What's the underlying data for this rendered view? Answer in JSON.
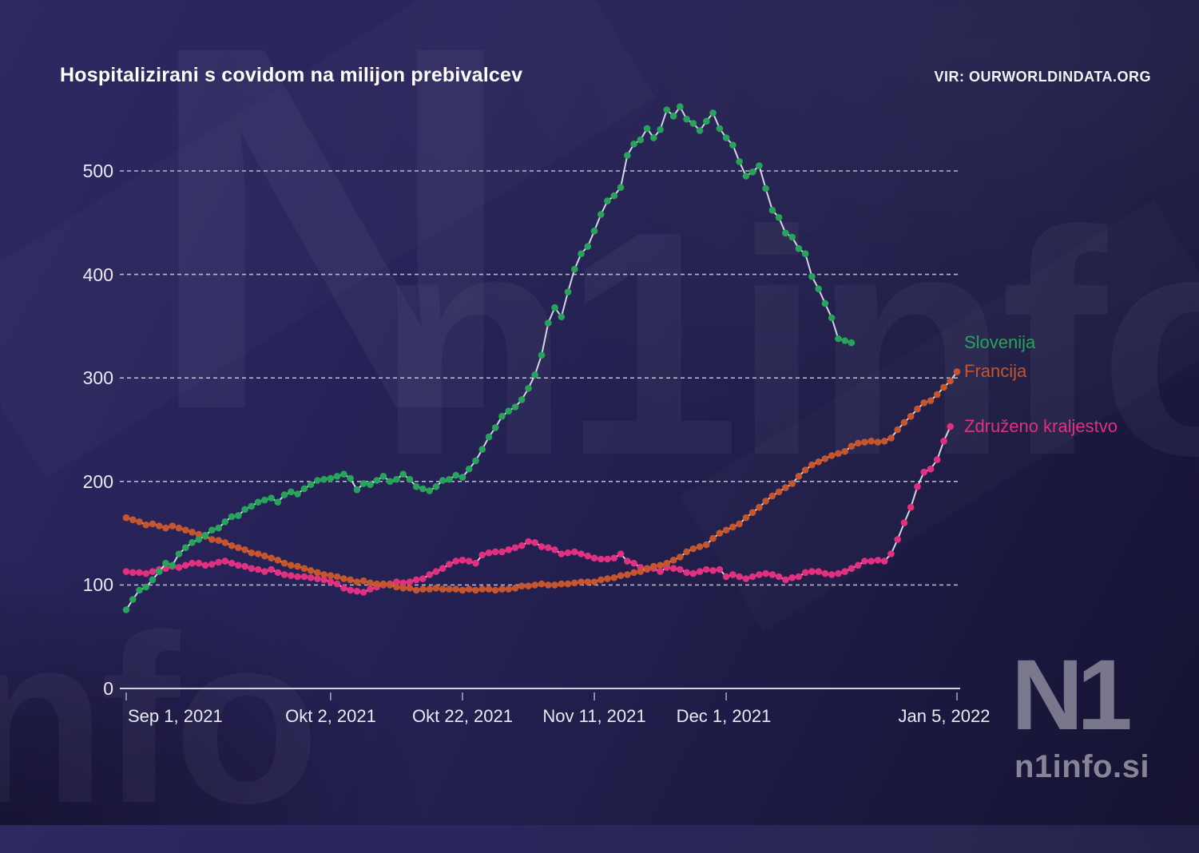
{
  "header": {
    "title": "Hospitalizirani s covidom na milijon prebivalcev",
    "source": "VIR: OURWORLDINDATA.ORG"
  },
  "branding": {
    "logo": "N1",
    "site": "n1info.si",
    "watermark_topleft": "N",
    "watermark_mid": "n1info",
    "watermark_bottomleft": "nfo"
  },
  "colors": {
    "background": "#262254",
    "grid": "#e8e8f0",
    "axis": "#cfd0e2",
    "line_core": "#e6e8f2",
    "slovenija": "#27a35a",
    "francija": "#c5552c",
    "zdruzeno_kraljestvo": "#e0307f",
    "label_text": "#e9eaf3",
    "title_text": "#ffffff"
  },
  "chart_data": {
    "type": "line",
    "title": "Hospitalizirani s covidom na milijon prebivalcev",
    "xlabel": "",
    "ylabel": "",
    "grid": "dashed horizontal",
    "legend_position": "right of line ends",
    "x_axis": {
      "unit": "date",
      "total_days": 126,
      "ticks": [
        {
          "day": 0,
          "label": "Sep 1, 2021"
        },
        {
          "day": 31,
          "label": "Okt 2, 2021"
        },
        {
          "day": 51,
          "label": "Okt 22, 2021"
        },
        {
          "day": 71,
          "label": "Nov 11, 2021"
        },
        {
          "day": 91,
          "label": "Dec 1, 2021"
        },
        {
          "day": 126,
          "label": "Jan 5, 2022"
        }
      ]
    },
    "y_axis": {
      "ticks": [
        0,
        100,
        200,
        300,
        400,
        500
      ],
      "range": [
        0,
        580
      ]
    },
    "series": [
      {
        "name": "Slovenija",
        "color": "#27a35a",
        "start_day": 0,
        "values": [
          76,
          86,
          95,
          98,
          105,
          113,
          121,
          119,
          130,
          136,
          141,
          144,
          148,
          153,
          155,
          161,
          166,
          167,
          173,
          176,
          180,
          182,
          184,
          180,
          187,
          190,
          188,
          193,
          197,
          201,
          202,
          203,
          205,
          207,
          203,
          192,
          198,
          197,
          201,
          205,
          200,
          202,
          207,
          202,
          195,
          193,
          191,
          195,
          201,
          202,
          206,
          204,
          212,
          220,
          231,
          243,
          252,
          263,
          268,
          272,
          279,
          290,
          303,
          322,
          353,
          368,
          359,
          383,
          405,
          420,
          427,
          442,
          458,
          471,
          476,
          484,
          515,
          526,
          530,
          541,
          532,
          540,
          559,
          553,
          562,
          550,
          546,
          539,
          548,
          556,
          541,
          532,
          525,
          509,
          495,
          499,
          505,
          483,
          462,
          455,
          440,
          436,
          425,
          420,
          398,
          386,
          372,
          358,
          338,
          336,
          334
        ]
      },
      {
        "name": "Francija",
        "color": "#c5552c",
        "start_day": 0,
        "values": [
          165,
          163,
          161,
          158,
          159,
          157,
          155,
          157,
          155,
          153,
          151,
          149,
          147,
          144,
          143,
          141,
          138,
          136,
          134,
          131,
          130,
          128,
          126,
          124,
          121,
          119,
          118,
          116,
          114,
          112,
          110,
          109,
          108,
          106,
          105,
          103,
          104,
          102,
          101,
          101,
          100,
          98,
          97,
          97,
          95,
          96,
          96,
          97,
          96,
          96,
          96,
          95,
          96,
          95,
          96,
          96,
          95,
          96,
          96,
          97,
          99,
          99,
          100,
          101,
          100,
          100,
          101,
          101,
          102,
          103,
          103,
          103,
          105,
          106,
          107,
          109,
          110,
          112,
          113,
          116,
          118,
          119,
          121,
          124,
          127,
          132,
          135,
          137,
          139,
          145,
          150,
          153,
          156,
          159,
          165,
          170,
          175,
          181,
          186,
          190,
          194,
          198,
          205,
          211,
          216,
          219,
          222,
          225,
          227,
          229,
          234,
          237,
          238,
          239,
          238,
          239,
          242,
          250,
          257,
          263,
          270,
          276,
          278,
          284,
          291,
          297,
          306
        ]
      },
      {
        "name": "Združeno kraljestvo",
        "color": "#e0307f",
        "start_day": 0,
        "values": [
          113,
          112,
          112,
          111,
          113,
          115,
          116,
          118,
          117,
          119,
          121,
          121,
          119,
          120,
          122,
          123,
          121,
          119,
          118,
          116,
          115,
          113,
          115,
          112,
          110,
          109,
          108,
          108,
          107,
          106,
          105,
          103,
          101,
          97,
          95,
          94,
          93,
          96,
          98,
          100,
          101,
          103,
          102,
          103,
          105,
          106,
          110,
          113,
          116,
          120,
          123,
          124,
          123,
          121,
          129,
          131,
          132,
          132,
          134,
          136,
          138,
          142,
          141,
          137,
          136,
          134,
          130,
          131,
          132,
          130,
          128,
          126,
          125,
          125,
          126,
          130,
          123,
          121,
          117,
          115,
          116,
          113,
          117,
          116,
          115,
          112,
          111,
          113,
          115,
          114,
          115,
          108,
          110,
          108,
          106,
          108,
          110,
          111,
          110,
          108,
          105,
          107,
          108,
          112,
          113,
          113,
          111,
          110,
          111,
          113,
          116,
          119,
          123,
          123,
          124,
          123,
          130,
          144,
          160,
          175,
          195,
          209,
          212,
          221,
          239,
          253
        ]
      }
    ]
  }
}
